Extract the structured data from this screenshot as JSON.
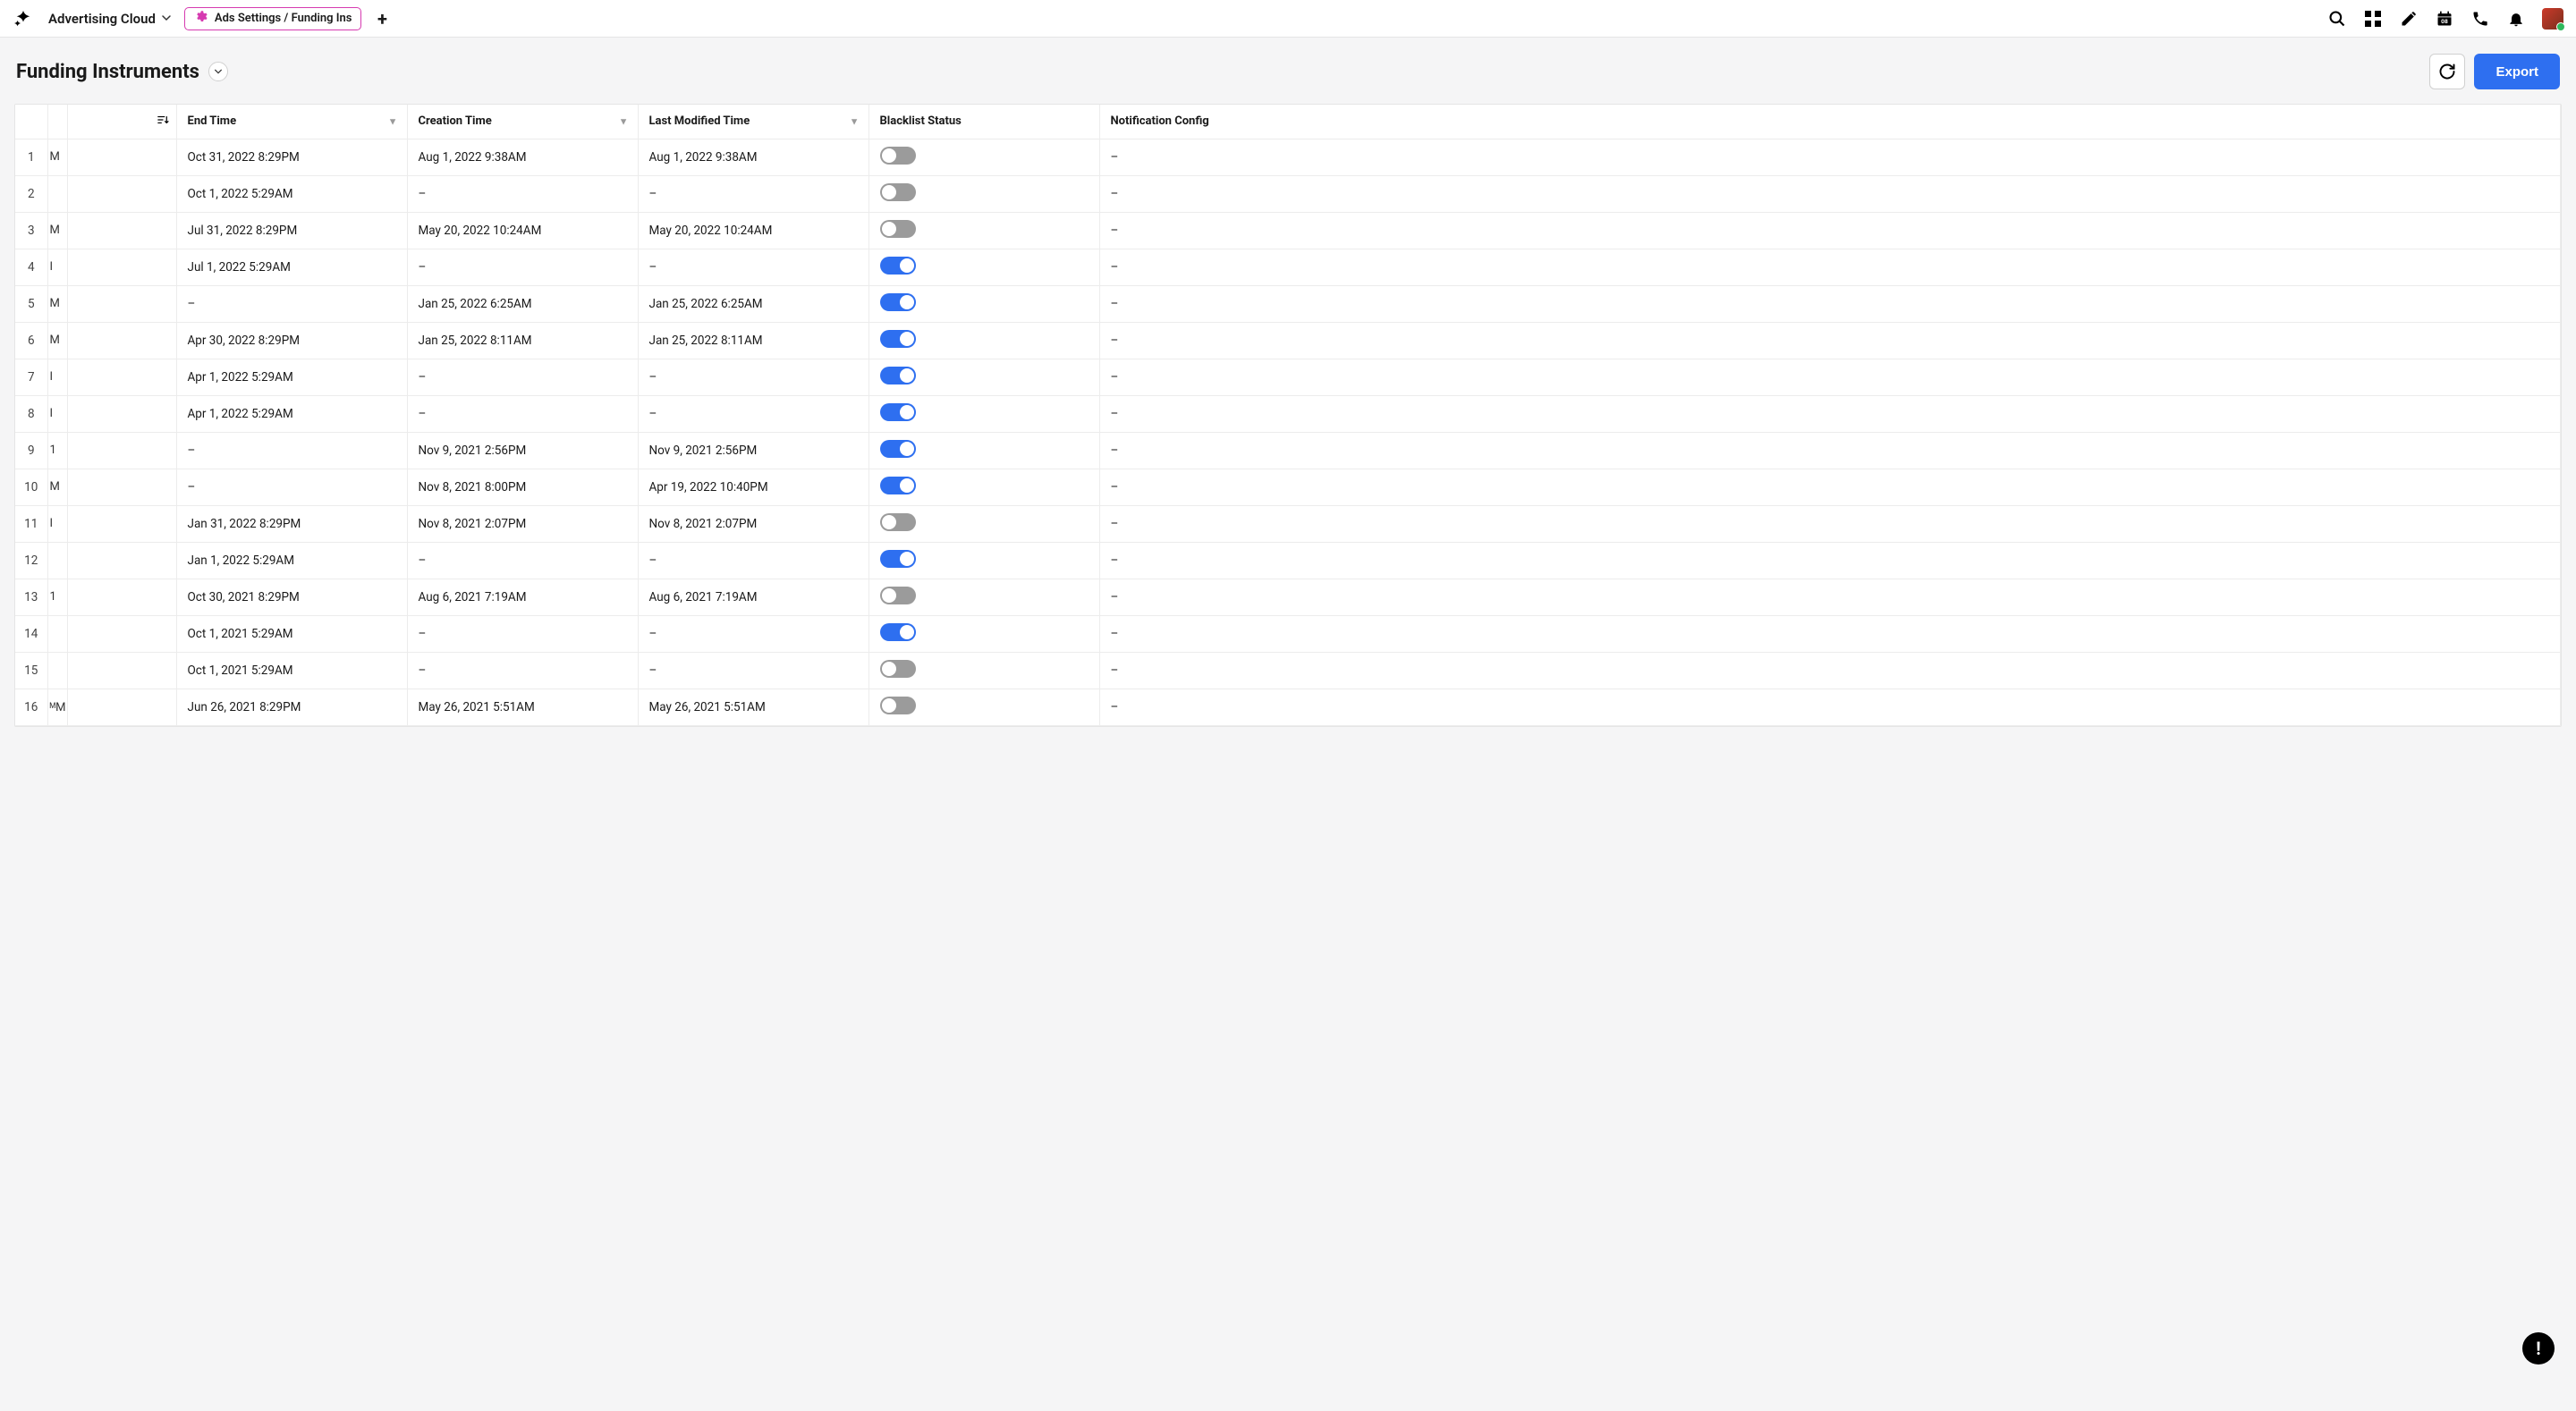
{
  "topbar": {
    "app_name": "Advertising Cloud",
    "tab_label": "Ads Settings / Funding Ins"
  },
  "header": {
    "title": "Funding Instruments",
    "export_label": "Export"
  },
  "table": {
    "columns": {
      "end": "End Time",
      "created": "Creation Time",
      "modified": "Last Modified Time",
      "blacklist": "Blacklist Status",
      "notif": "Notification Config"
    },
    "rows": [
      {
        "n": "1",
        "trunc": "M",
        "end": "Oct 31, 2022 8:29PM",
        "created": "Aug 1, 2022 9:38AM",
        "modified": "Aug 1, 2022 9:38AM",
        "bl": false,
        "notif": "–"
      },
      {
        "n": "2",
        "trunc": "",
        "end": "Oct 1, 2022 5:29AM",
        "created": "–",
        "modified": "–",
        "bl": false,
        "notif": "–"
      },
      {
        "n": "3",
        "trunc": "M",
        "end": "Jul 31, 2022 8:29PM",
        "created": "May 20, 2022 10:24AM",
        "modified": "May 20, 2022 10:24AM",
        "bl": false,
        "notif": "–"
      },
      {
        "n": "4",
        "trunc": "I",
        "end": "Jul 1, 2022 5:29AM",
        "created": "–",
        "modified": "–",
        "bl": true,
        "notif": "–"
      },
      {
        "n": "5",
        "trunc": "M",
        "end": "–",
        "created": "Jan 25, 2022 6:25AM",
        "modified": "Jan 25, 2022 6:25AM",
        "bl": true,
        "notif": "–"
      },
      {
        "n": "6",
        "trunc": "M",
        "end": "Apr 30, 2022 8:29PM",
        "created": "Jan 25, 2022 8:11AM",
        "modified": "Jan 25, 2022 8:11AM",
        "bl": true,
        "notif": "–"
      },
      {
        "n": "7",
        "trunc": "I",
        "end": "Apr 1, 2022 5:29AM",
        "created": "–",
        "modified": "–",
        "bl": true,
        "notif": "–"
      },
      {
        "n": "8",
        "trunc": "I",
        "end": "Apr 1, 2022 5:29AM",
        "created": "–",
        "modified": "–",
        "bl": true,
        "notif": "–"
      },
      {
        "n": "9",
        "trunc": "1",
        "end": "–",
        "created": "Nov 9, 2021 2:56PM",
        "modified": "Nov 9, 2021 2:56PM",
        "bl": true,
        "notif": "–"
      },
      {
        "n": "10",
        "trunc": "M",
        "end": "–",
        "created": "Nov 8, 2021 8:00PM",
        "modified": "Apr 19, 2022 10:40PM",
        "bl": true,
        "notif": "–"
      },
      {
        "n": "11",
        "trunc": "I",
        "end": "Jan 31, 2022 8:29PM",
        "created": "Nov 8, 2021 2:07PM",
        "modified": "Nov 8, 2021 2:07PM",
        "bl": false,
        "notif": "–"
      },
      {
        "n": "12",
        "trunc": "",
        "end": "Jan 1, 2022 5:29AM",
        "created": "–",
        "modified": "–",
        "bl": true,
        "notif": "–"
      },
      {
        "n": "13",
        "trunc": "1",
        "end": "Oct 30, 2021 8:29PM",
        "created": "Aug 6, 2021 7:19AM",
        "modified": "Aug 6, 2021 7:19AM",
        "bl": false,
        "notif": "–"
      },
      {
        "n": "14",
        "trunc": "",
        "end": "Oct 1, 2021 5:29AM",
        "created": "–",
        "modified": "–",
        "bl": true,
        "notif": "–"
      },
      {
        "n": "15",
        "trunc": "",
        "end": "Oct 1, 2021 5:29AM",
        "created": "–",
        "modified": "–",
        "bl": false,
        "notif": "–"
      },
      {
        "n": "16",
        "trunc": "ᴹM",
        "end": "Jun 26, 2021 8:29PM",
        "created": "May 26, 2021 5:51AM",
        "modified": "May 26, 2021 5:51AM",
        "bl": false,
        "notif": "–"
      }
    ]
  },
  "colors": {
    "accent_pink": "#d63ab0",
    "primary_blue": "#2e6ff0",
    "toggle_off": "#9b9b9b"
  }
}
